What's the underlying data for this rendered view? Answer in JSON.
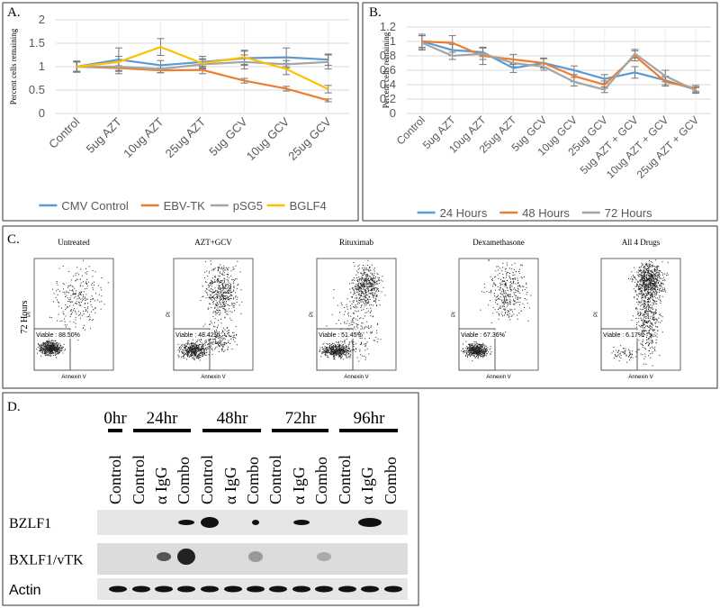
{
  "chart_data": [
    {
      "type": "line",
      "label": "A.",
      "y_label": "Percent cells remaining",
      "categories": [
        "Control",
        "5ug AZT",
        "10ug AZT",
        "25ug AZT",
        "5ug GCV",
        "10ug GCV",
        "25ug GCV"
      ],
      "ylim": [
        0,
        2
      ],
      "yticks": [
        0,
        0.5,
        1,
        1.5,
        2
      ],
      "grid": true,
      "legend": "bottom",
      "series": [
        {
          "name": "CMV Control",
          "color": "#5b9bd5",
          "values": [
            1.0,
            1.15,
            1.03,
            1.1,
            1.18,
            1.2,
            1.15
          ],
          "errors": [
            0.1,
            0.25,
            0.1,
            0.12,
            0.15,
            0.2,
            0.12
          ]
        },
        {
          "name": "EBV-TK",
          "color": "#ed7d31",
          "values": [
            1.0,
            0.97,
            0.92,
            0.93,
            0.7,
            0.53,
            0.28
          ],
          "errors": [
            0.1,
            0.05,
            0.05,
            0.08,
            0.05,
            0.05,
            0.03
          ]
        },
        {
          "name": "pSG5",
          "color": "#a5a5a5",
          "values": [
            1.0,
            1.0,
            0.95,
            1.05,
            1.1,
            1.05,
            1.1
          ],
          "errors": [
            0.12,
            0.15,
            0.08,
            0.1,
            0.15,
            0.08,
            0.15
          ]
        },
        {
          "name": "BGLF4",
          "color": "#ffc000",
          "values": [
            1.0,
            1.1,
            1.42,
            1.07,
            1.2,
            0.95,
            0.52
          ],
          "errors": [
            0.1,
            0.12,
            0.18,
            0.1,
            0.15,
            0.12,
            0.08
          ]
        }
      ]
    },
    {
      "type": "line",
      "label": "B.",
      "y_label": "Percent cells remaining",
      "categories": [
        "Control",
        "5ug AZT",
        "10ug AZT",
        "25ug AZT",
        "5ug GCV",
        "10ug GCV",
        "25ug GCV",
        "5ug AZT + GCV",
        "10ug AZT + GCV",
        "25ug AZT + GCV"
      ],
      "ylim": [
        0,
        1.2
      ],
      "yticks": [
        0,
        0.2,
        0.4,
        0.6,
        0.8,
        1,
        1.2
      ],
      "grid": true,
      "legend": "bottom",
      "series": [
        {
          "name": "24 Hours",
          "color": "#5b9bd5",
          "values": [
            1.0,
            0.88,
            0.85,
            0.63,
            0.7,
            0.6,
            0.48,
            0.57,
            0.46,
            0.33
          ],
          "errors": [
            0.08,
            0.08,
            0.06,
            0.06,
            0.06,
            0.06,
            0.06,
            0.08,
            0.06,
            0.04
          ]
        },
        {
          "name": "48 Hours",
          "color": "#ed7d31",
          "values": [
            1.0,
            0.98,
            0.8,
            0.75,
            0.7,
            0.52,
            0.4,
            0.8,
            0.44,
            0.35
          ],
          "errors": [
            0.1,
            0.1,
            0.12,
            0.07,
            0.07,
            0.08,
            0.05,
            0.07,
            0.06,
            0.04
          ]
        },
        {
          "name": "72 Hours",
          "color": "#a5a5a5",
          "values": [
            0.98,
            0.8,
            0.83,
            0.7,
            0.65,
            0.44,
            0.33,
            0.83,
            0.52,
            0.32
          ],
          "errors": [
            0.1,
            0.05,
            0.08,
            0.05,
            0.05,
            0.06,
            0.04,
            0.06,
            0.08,
            0.04
          ]
        }
      ]
    }
  ],
  "flow_panel": {
    "label": "C.",
    "row_label": "72 Hours",
    "x_axis": "Annexin V",
    "y_axis": "PI",
    "plots": [
      {
        "title": "Untreated",
        "gate": "Viable : 88.50%"
      },
      {
        "title": "AZT+GCV",
        "gate": "Viable : 48.42%"
      },
      {
        "title": "Rituximab",
        "gate": "Viable : 51.45%"
      },
      {
        "title": "Dexamethasone",
        "gate": "Viable : 67.36%"
      },
      {
        "title": "All 4 Drugs",
        "gate": "Viable : 6.17%"
      }
    ]
  },
  "blot_panel": {
    "label": "D.",
    "timepoints": [
      "0hr",
      "24hr",
      "48hr",
      "72hr",
      "96hr"
    ],
    "lanes": [
      "Control",
      "Control",
      "α IgG",
      "Combo",
      "Control",
      "α IgG",
      "Combo",
      "Control",
      "α IgG",
      "Combo",
      "Control",
      "α IgG",
      "Combo"
    ],
    "rows": [
      "BZLF1",
      "BXLF1/vTK",
      "Actin"
    ]
  }
}
